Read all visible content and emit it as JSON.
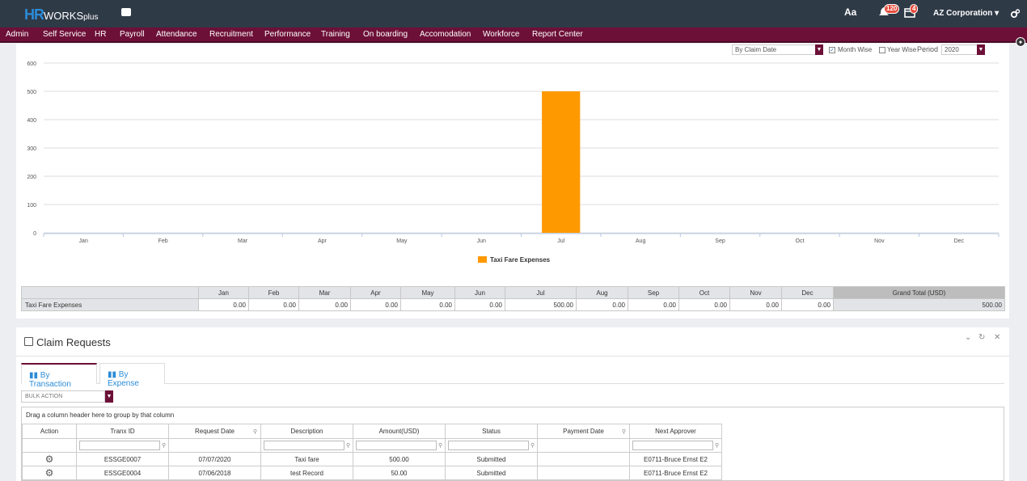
{
  "app": {
    "logo_hr": "HR",
    "logo_works": "WORKS",
    "logo_plus": "plus",
    "font_toggle": "Aa",
    "notif_badge": "120",
    "calendar_badge": "4",
    "company": "AZ Corporation ▾"
  },
  "nav": [
    "Admin",
    "Self Service",
    "HR",
    "Payroll",
    "Attendance",
    "Recruitment",
    "Performance",
    "Training",
    "On boarding",
    "Accomodation",
    "Workforce",
    "Report Center"
  ],
  "filters": {
    "claim_by": "By Claim Date",
    "month_wise": "Month Wise",
    "month_wise_checked": true,
    "year_wise": "Year Wise",
    "period_label": "Period",
    "period_value": "2020"
  },
  "chart_data": {
    "type": "bar",
    "categories": [
      "Jan",
      "Feb",
      "Mar",
      "Apr",
      "May",
      "Jun",
      "Jul",
      "Aug",
      "Sep",
      "Oct",
      "Nov",
      "Dec"
    ],
    "series": [
      {
        "name": "Taxi Fare Expenses",
        "values": [
          0,
          0,
          0,
          0,
          0,
          0,
          500,
          0,
          0,
          0,
          0,
          0
        ],
        "color": "#ff9900"
      }
    ],
    "yticks": [
      "0",
      "100",
      "200",
      "300",
      "400",
      "500",
      "600"
    ],
    "ylim": [
      0,
      600
    ],
    "grid": true,
    "legend_position": "bottom"
  },
  "summary": {
    "months": [
      "Jan",
      "Feb",
      "Mar",
      "Apr",
      "May",
      "Jun",
      "Jul",
      "Aug",
      "Sep",
      "Oct",
      "Nov",
      "Dec"
    ],
    "grand_total_label": "Grand Total (USD)",
    "row_label": "Taxi Fare Expenses",
    "values": [
      "0.00",
      "0.00",
      "0.00",
      "0.00",
      "0.00",
      "0.00",
      "500.00",
      "0.00",
      "0.00",
      "0.00",
      "0.00",
      "0.00"
    ],
    "grand_total": "500.00"
  },
  "claims": {
    "title": "Claim Requests",
    "tabs": [
      "By Transaction",
      "By Expense"
    ],
    "bulk_action": "BULK ACTION",
    "group_hint": "Drag a column header here to group by that column",
    "columns": [
      "Action",
      "Tranx ID",
      "Request Date",
      "Description",
      "Amount(USD)",
      "Status",
      "Payment Date",
      "Next Approver"
    ],
    "rows": [
      [
        "ESSGE0007",
        "07/07/2020",
        "Taxi fare",
        "500.00",
        "Submitted",
        "",
        "E0711-Bruce Ernst E2"
      ],
      [
        "ESSGE0004",
        "07/06/2018",
        "test Record",
        "50.00",
        "Submitted",
        "",
        "E0711-Bruce Ernst E2"
      ]
    ]
  }
}
